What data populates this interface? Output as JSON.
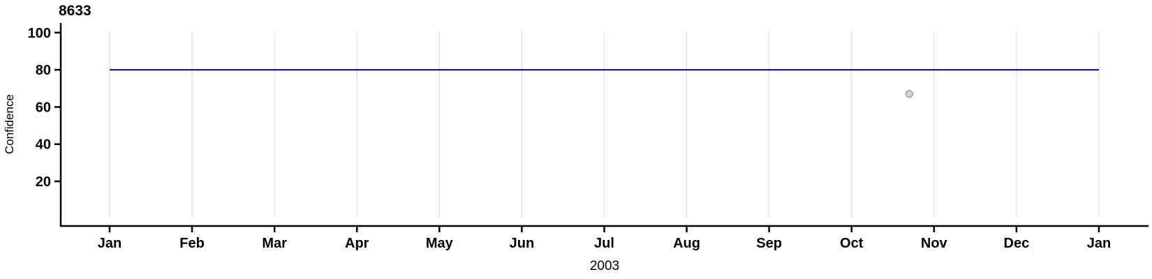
{
  "chart": {
    "title": "8633",
    "ylabel": "Confidence",
    "xlabel": "2003"
  },
  "chart_data": {
    "type": "line",
    "title": "8633",
    "xlabel": "2003",
    "ylabel": "Confidence",
    "x_tick_labels": [
      "Jan",
      "Feb",
      "Mar",
      "Apr",
      "May",
      "Jun",
      "Jul",
      "Aug",
      "Sep",
      "Oct",
      "Nov",
      "Dec",
      "Jan"
    ],
    "x_range_months": [
      0,
      12
    ],
    "y_ticks": [
      20,
      40,
      60,
      80,
      100
    ],
    "ylim": [
      0,
      104
    ],
    "grid": {
      "vertical_monthly": true,
      "horizontal": false,
      "color": "#d8d8d8"
    },
    "legend": "none",
    "axis_color": "#000000",
    "series": [
      {
        "name": "confidence-level-line",
        "type": "hline",
        "y": 80,
        "x_start": 0,
        "x_end": 12,
        "color": "#0000cc",
        "width": 2
      },
      {
        "name": "observation-point",
        "type": "scatter",
        "points": [
          {
            "x": 9.7,
            "y": 67
          }
        ],
        "fill": "#d3d3d3",
        "stroke": "#a0a0a0",
        "radius": 5
      }
    ]
  }
}
